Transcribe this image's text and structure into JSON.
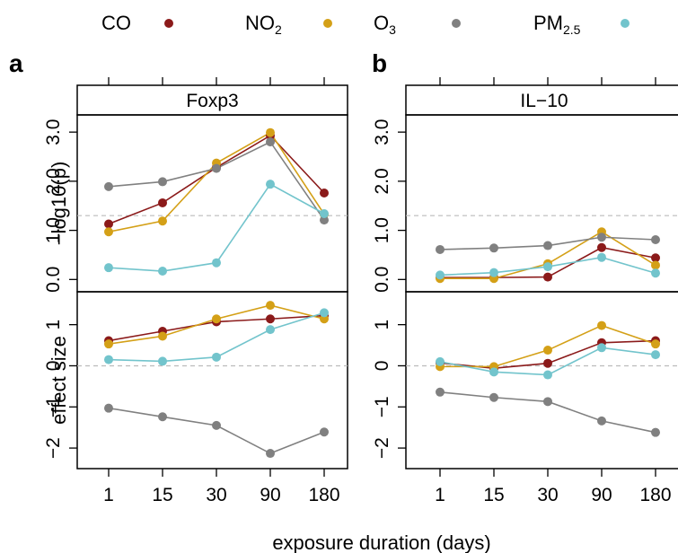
{
  "colors": {
    "CO": "#8b1a1a",
    "NO2": "#d4a017",
    "O3": "#808080",
    "PM25": "#72c4cc",
    "frame": "#000000",
    "reference_line": "#bbbbbb"
  },
  "legend": [
    {
      "key": "CO",
      "base": "CO",
      "sub": "",
      "color": "#8b1a1a"
    },
    {
      "key": "NO2",
      "base": "NO",
      "sub": "2",
      "color": "#d4a017"
    },
    {
      "key": "O3",
      "base": "O",
      "sub": "3",
      "color": "#808080"
    },
    {
      "key": "PM25",
      "base": "PM",
      "sub": "2.5",
      "color": "#72c4cc"
    }
  ],
  "xlabel": "exposure duration (days)",
  "chart_data": [
    {
      "panel": "a",
      "gene": "Foxp3",
      "type": "line",
      "categories": [
        "1",
        "15",
        "30",
        "90",
        "180"
      ],
      "rows": [
        {
          "ylabel": "−log10(p)",
          "ylim": [
            -0.25,
            3.35
          ],
          "yticks": [
            "0.0",
            "1.0",
            "2.0",
            "3.0"
          ],
          "ytick_values": [
            0,
            1,
            2,
            3
          ],
          "reference_line": 1.3,
          "series": [
            {
              "key": "CO",
              "values": [
                1.13,
                1.56,
                2.28,
                2.93,
                1.76
              ]
            },
            {
              "key": "NO2",
              "values": [
                0.97,
                1.19,
                2.37,
                2.99,
                1.33
              ]
            },
            {
              "key": "O3",
              "values": [
                1.89,
                1.99,
                2.26,
                2.8,
                1.21
              ]
            },
            {
              "key": "PM25",
              "values": [
                0.24,
                0.17,
                0.34,
                1.94,
                1.34
              ]
            }
          ]
        },
        {
          "ylabel": "effect size",
          "ylim": [
            -2.5,
            1.8
          ],
          "yticks": [
            "−2",
            "−1",
            "0",
            "1"
          ],
          "ytick_values": [
            -2,
            -1,
            0,
            1
          ],
          "reference_line": 0,
          "series": [
            {
              "key": "CO",
              "values": [
                0.61,
                0.84,
                1.07,
                1.14,
                1.22
              ]
            },
            {
              "key": "NO2",
              "values": [
                0.53,
                0.72,
                1.14,
                1.47,
                1.14
              ]
            },
            {
              "key": "O3",
              "values": [
                -1.03,
                -1.24,
                -1.45,
                -2.13,
                -1.61
              ]
            },
            {
              "key": "PM25",
              "values": [
                0.15,
                0.11,
                0.21,
                0.88,
                1.29
              ]
            }
          ]
        }
      ]
    },
    {
      "panel": "b",
      "gene": "IL−10",
      "type": "line",
      "categories": [
        "1",
        "15",
        "30",
        "90",
        "180"
      ],
      "rows": [
        {
          "ylabel": "",
          "ylim": [
            -0.25,
            3.35
          ],
          "yticks": [
            "0.0",
            "1.0",
            "2.0",
            "3.0"
          ],
          "ytick_values": [
            0,
            1,
            2,
            3
          ],
          "reference_line": 1.3,
          "series": [
            {
              "key": "CO",
              "values": [
                0.04,
                0.04,
                0.05,
                0.65,
                0.44
              ]
            },
            {
              "key": "NO2",
              "values": [
                0.02,
                0.02,
                0.32,
                0.97,
                0.29
              ]
            },
            {
              "key": "O3",
              "values": [
                0.61,
                0.64,
                0.69,
                0.86,
                0.81
              ]
            },
            {
              "key": "PM25",
              "values": [
                0.09,
                0.14,
                0.26,
                0.45,
                0.13
              ]
            }
          ]
        },
        {
          "ylabel": "",
          "ylim": [
            -2.5,
            1.8
          ],
          "yticks": [
            "−2",
            "−1",
            "0",
            "1"
          ],
          "ytick_values": [
            -2,
            -1,
            0,
            1
          ],
          "reference_line": 0,
          "series": [
            {
              "key": "CO",
              "values": [
                0.07,
                -0.06,
                0.06,
                0.56,
                0.61
              ]
            },
            {
              "key": "NO2",
              "values": [
                -0.02,
                -0.02,
                0.38,
                0.98,
                0.53
              ]
            },
            {
              "key": "O3",
              "values": [
                -0.64,
                -0.77,
                -0.87,
                -1.34,
                -1.62
              ]
            },
            {
              "key": "PM25",
              "values": [
                0.1,
                -0.15,
                -0.22,
                0.44,
                0.27
              ]
            }
          ]
        }
      ]
    }
  ]
}
